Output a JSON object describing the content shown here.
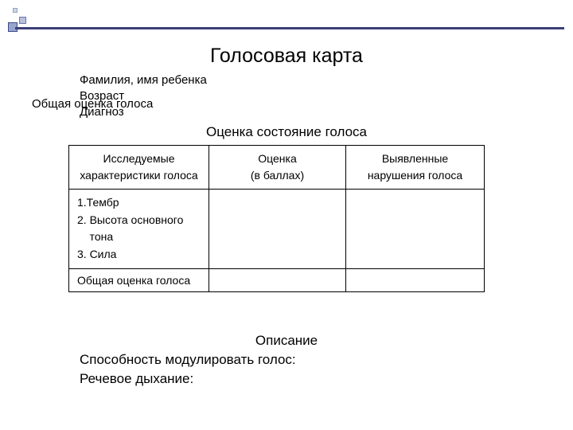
{
  "title": "Голосовая карта",
  "info": {
    "name": "Фамилия, имя ребенка",
    "age": "Возраст",
    "diagnosis": "Диагноз"
  },
  "overlay_label": "Общая оценка голоса",
  "subtitle": "Оценка состояние голоса",
  "table": {
    "headers": {
      "c1a": "Исследуемые",
      "c1b": "характеристики голоса",
      "c2a": "Оценка",
      "c2b": "(в баллах)",
      "c3a": "Выявленные",
      "c3b": "нарушения голоса"
    },
    "row1": {
      "l1": "1.Тембр",
      "l2": "2. Высота основного",
      "l3": "    тона",
      "l4": "3. Сила"
    },
    "row2": "Общая оценка голоса",
    "empty": ""
  },
  "description": {
    "title": "Описание",
    "line1": "Способность модулировать голос:",
    "line2": "Речевое дыхание:"
  }
}
